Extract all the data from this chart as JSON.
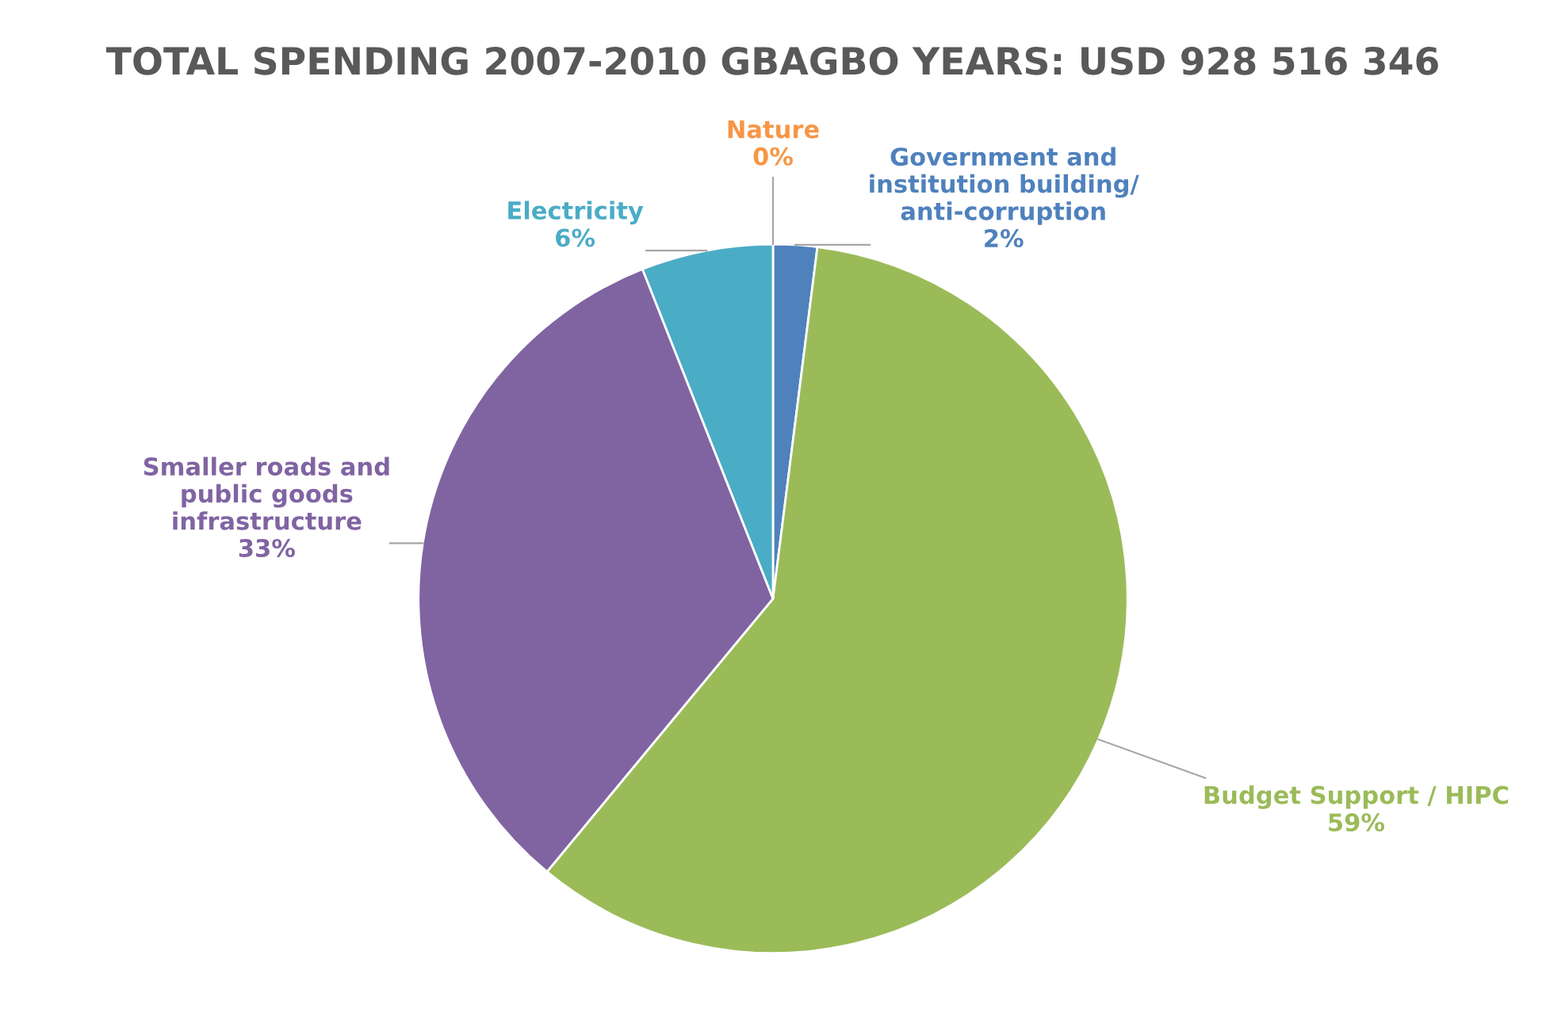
{
  "chart_data": {
    "type": "pie",
    "title": "TOTAL SPENDING 2007-2010 GBAGBO YEARS: USD 928 516 346",
    "categories": [
      "Nature",
      "Government and\ninstitution building/\nanti-corruption",
      "Budget Support / HIPC",
      "Smaller roads and\npublic goods\ninfrastructure",
      "Electricity"
    ],
    "values": [
      0,
      2,
      59,
      33,
      6
    ],
    "colors": [
      "#f79646",
      "#4f81bd",
      "#9bbb59",
      "#8064a2",
      "#4bacc6"
    ],
    "value_labels": [
      "0%",
      "2%",
      "59%",
      "33%",
      "6%"
    ],
    "legend": false
  }
}
